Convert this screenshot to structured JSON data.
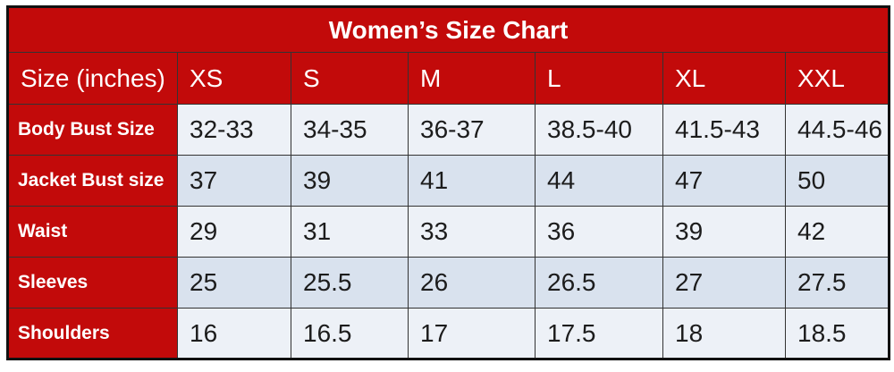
{
  "colors": {
    "red": "#C20A0A",
    "row_light": "#EDF1F7",
    "row_dark": "#D9E2EE",
    "border_inner": "#333333",
    "border_outer": "#111111",
    "text_white": "#FFFFFF",
    "text_dark": "#1C1C1C"
  },
  "chart_data": {
    "type": "table",
    "title": "Women’s Size Chart",
    "columns": [
      "Size (inches)",
      "XS",
      "S",
      "M",
      "L",
      "XL",
      "XXL"
    ],
    "rows": [
      [
        "Body Bust Size",
        "32-33",
        "34-35",
        "36-37",
        "38.5-40",
        "41.5-43",
        "44.5-46"
      ],
      [
        "Jacket Bust size",
        "37",
        "39",
        "41",
        "44",
        "47",
        "50"
      ],
      [
        "Waist",
        "29",
        "31",
        "33",
        "36",
        "39",
        "42"
      ],
      [
        "Sleeves",
        "25",
        "25.5",
        "26",
        "26.5",
        "27",
        "27.5"
      ],
      [
        "Shoulders",
        "16",
        "16.5",
        "17",
        "17.5",
        "18",
        "18.5"
      ]
    ]
  }
}
